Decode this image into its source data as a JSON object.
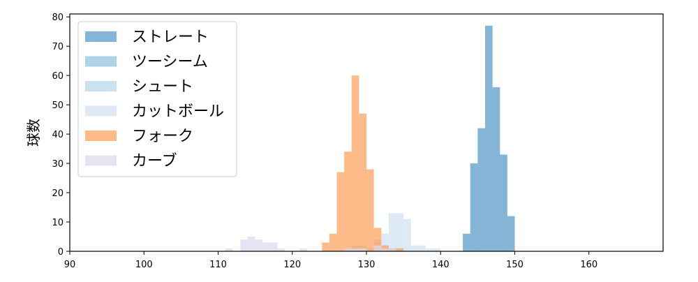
{
  "chart_data": {
    "type": "histogram",
    "ylabel": "球数",
    "xlabel": "",
    "title": "",
    "xlim": [
      90,
      170
    ],
    "ylim": [
      0,
      81
    ],
    "xticks": [
      90,
      100,
      110,
      120,
      130,
      140,
      150,
      160
    ],
    "yticks": [
      0,
      10,
      20,
      30,
      40,
      50,
      60,
      70,
      80
    ],
    "bin_width": 1,
    "legend_position": "upper-left",
    "grid": false,
    "series": [
      {
        "name": "ストレート",
        "color": "#1f77b4",
        "opacity": 0.55,
        "bins": [
          [
            143,
            6
          ],
          [
            144,
            30
          ],
          [
            145,
            42
          ],
          [
            146,
            77
          ],
          [
            147,
            56
          ],
          [
            148,
            33
          ],
          [
            149,
            12
          ]
        ]
      },
      {
        "name": "ツーシーム",
        "color": "#6baed6",
        "opacity": 0.55,
        "bins": []
      },
      {
        "name": "シュート",
        "color": "#9ecae1",
        "opacity": 0.55,
        "bins": []
      },
      {
        "name": "カットボール",
        "color": "#c6dbef",
        "opacity": 0.6,
        "bins": [
          [
            127,
            1
          ],
          [
            128,
            2
          ],
          [
            129,
            2
          ],
          [
            130,
            1
          ],
          [
            131,
            4
          ],
          [
            132,
            6
          ],
          [
            133,
            13
          ],
          [
            134,
            13
          ],
          [
            135,
            11
          ],
          [
            136,
            2
          ],
          [
            137,
            2
          ],
          [
            138,
            1
          ],
          [
            139,
            1
          ]
        ]
      },
      {
        "name": "フォーク",
        "color": "#fd8d3c",
        "opacity": 0.6,
        "bins": [
          [
            124,
            3
          ],
          [
            125,
            6
          ],
          [
            126,
            27
          ],
          [
            127,
            34
          ],
          [
            128,
            60
          ],
          [
            129,
            47
          ],
          [
            130,
            28
          ],
          [
            131,
            8
          ],
          [
            132,
            2
          ],
          [
            133,
            1
          ],
          [
            134,
            1
          ]
        ]
      },
      {
        "name": "カーブ",
        "color": "#dadaeb",
        "opacity": 0.7,
        "bins": [
          [
            111,
            1
          ],
          [
            113,
            4
          ],
          [
            114,
            5
          ],
          [
            115,
            4
          ],
          [
            116,
            3
          ],
          [
            117,
            3
          ],
          [
            118,
            1
          ],
          [
            121,
            1
          ],
          [
            127,
            1
          ],
          [
            128,
            1
          ],
          [
            129,
            1
          ],
          [
            131,
            2
          ],
          [
            132,
            1
          ],
          [
            133,
            1
          ]
        ]
      }
    ]
  }
}
